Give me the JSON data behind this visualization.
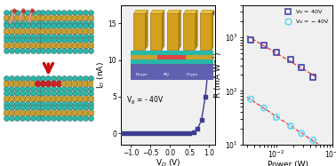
{
  "panel_middle": {
    "xlabel": "V$_D$ (V)",
    "ylabel": "I$_D$ (nA)",
    "annotation": "V$_g$ = - 40V",
    "xlim": [
      -1.25,
      1.15
    ],
    "ylim": [
      -1.5,
      17.5
    ],
    "xticks": [
      -1.0,
      -0.5,
      0.0,
      0.5,
      1.0
    ],
    "yticks": [
      0,
      5,
      10,
      15
    ],
    "vd_values": [
      -1.2,
      -1.1,
      -1.0,
      -0.9,
      -0.8,
      -0.7,
      -0.6,
      -0.5,
      -0.4,
      -0.3,
      -0.2,
      -0.1,
      0.0,
      0.1,
      0.2,
      0.3,
      0.4,
      0.5,
      0.6,
      0.7,
      0.8,
      0.9,
      1.0,
      1.05
    ],
    "id_values": [
      0.0,
      0.0,
      0.0,
      0.0,
      0.0,
      0.0,
      0.0,
      0.0,
      0.0,
      0.0,
      0.0,
      0.0,
      0.0,
      0.0,
      0.0,
      0.0,
      0.0,
      0.05,
      0.2,
      0.6,
      1.8,
      5.0,
      10.5,
      16.5
    ],
    "line_color": "#3d3d8f",
    "marker_color": "#3d3d8f",
    "bg_color": "#f0f0f0"
  },
  "panel_right": {
    "xlabel": "Power (W)",
    "ylabel": "R (mA W$^{-1}$)",
    "ylim": [
      10,
      4000
    ],
    "series1_label": "V$_G$ = 40V",
    "series2_label": "V$_G$ = − 40V",
    "series1_power": [
      0.0035,
      0.006,
      0.01,
      0.018,
      0.028,
      0.045
    ],
    "series1_R": [
      900,
      700,
      530,
      380,
      270,
      180
    ],
    "series2_power": [
      0.0035,
      0.006,
      0.01,
      0.018,
      0.028,
      0.045
    ],
    "series2_R": [
      70,
      48,
      32,
      22,
      16,
      12
    ],
    "series1_marker_color": "#4a4aaa",
    "series2_marker_color": "#66d8f0",
    "trend_color": "#ee3333",
    "bg_color": "#f0f0f0"
  },
  "left_schematic": {
    "teal_color": "#28b8a8",
    "gold_color": "#c8a030",
    "red_color": "#cc2222",
    "plasma_color": "#cc6060",
    "arrow_color": "#cc1111",
    "text_color": "#222222"
  }
}
